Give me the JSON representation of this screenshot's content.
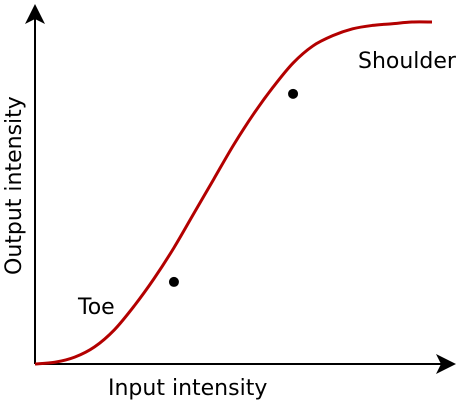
{
  "chart_data": {
    "type": "line",
    "title": "",
    "xlabel": "Input intensity",
    "ylabel": "Output intensity",
    "xlim": [
      0,
      1
    ],
    "ylim": [
      0,
      1
    ],
    "grid": false,
    "legend": "none",
    "line_color": "#b30000",
    "series": [
      {
        "x": [
          0.0,
          0.05,
          0.1,
          0.15,
          0.2,
          0.25,
          0.3,
          0.35,
          0.4,
          0.45,
          0.5,
          0.55,
          0.6,
          0.65,
          0.7,
          0.75,
          0.8,
          0.85,
          0.9,
          0.95,
          1.0
        ],
        "y": [
          0.0,
          0.005,
          0.02,
          0.05,
          0.1,
          0.17,
          0.25,
          0.34,
          0.44,
          0.54,
          0.64,
          0.73,
          0.81,
          0.88,
          0.93,
          0.96,
          0.98,
          0.99,
          0.995,
          1.0,
          1.0
        ]
      }
    ],
    "points": [
      {
        "x": 0.35,
        "y": 0.24
      },
      {
        "x": 0.65,
        "y": 0.79
      }
    ],
    "annotations": [
      {
        "id": "toe",
        "text": "Toe"
      },
      {
        "id": "shoulder",
        "text": "Shoulder"
      }
    ]
  }
}
